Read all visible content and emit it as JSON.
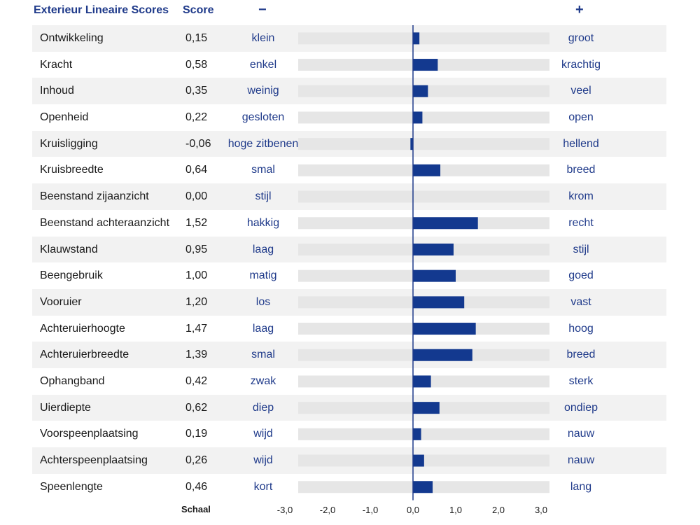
{
  "header": {
    "title": "Exterieur Lineaire Scores",
    "score": "Score",
    "minus": "−",
    "plus": "+"
  },
  "colors": {
    "bar": "#13398f",
    "track": "#e6e6e6",
    "row_alt": "#f2f2f2",
    "axis": "#1f3a8a",
    "label_blue": "#1f3a8a"
  },
  "chart_data": {
    "type": "bar",
    "orientation": "horizontal",
    "title": "Exterieur Lineaire Scores",
    "xlim": [
      -3.0,
      3.0
    ],
    "xaxis_label": "Schaal",
    "xticks": [
      "-3,0",
      "-2,0",
      "-1,0",
      "0,0",
      "1,0",
      "2,0",
      "3,0"
    ],
    "xtick_values": [
      -3,
      -2,
      -1,
      0,
      1,
      2,
      3
    ],
    "rows": [
      {
        "label": "Ontwikkeling",
        "score": "0,15",
        "value": 0.15,
        "minus": "klein",
        "plus": "groot"
      },
      {
        "label": "Kracht",
        "score": "0,58",
        "value": 0.58,
        "minus": "enkel",
        "plus": "krachtig"
      },
      {
        "label": "Inhoud",
        "score": "0,35",
        "value": 0.35,
        "minus": "weinig",
        "plus": "veel"
      },
      {
        "label": "Openheid",
        "score": "0,22",
        "value": 0.22,
        "minus": "gesloten",
        "plus": "open"
      },
      {
        "label": "Kruisligging",
        "score": "-0,06",
        "value": -0.06,
        "minus": "hoge zitbenen",
        "plus": "hellend"
      },
      {
        "label": "Kruisbreedte",
        "score": "0,64",
        "value": 0.64,
        "minus": "smal",
        "plus": "breed"
      },
      {
        "label": "Beenstand zijaanzicht",
        "score": "0,00",
        "value": 0.0,
        "minus": "stijl",
        "plus": "krom"
      },
      {
        "label": "Beenstand achteraanzicht",
        "score": "1,52",
        "value": 1.52,
        "minus": "hakkig",
        "plus": "recht"
      },
      {
        "label": "Klauwstand",
        "score": "0,95",
        "value": 0.95,
        "minus": "laag",
        "plus": "stijl"
      },
      {
        "label": "Beengebruik",
        "score": "1,00",
        "value": 1.0,
        "minus": "matig",
        "plus": "goed"
      },
      {
        "label": "Vooruier",
        "score": "1,20",
        "value": 1.2,
        "minus": "los",
        "plus": "vast"
      },
      {
        "label": "Achteruierhoogte",
        "score": "1,47",
        "value": 1.47,
        "minus": "laag",
        "plus": "hoog"
      },
      {
        "label": "Achteruierbreedte",
        "score": "1,39",
        "value": 1.39,
        "minus": "smal",
        "plus": "breed"
      },
      {
        "label": "Ophangband",
        "score": "0,42",
        "value": 0.42,
        "minus": "zwak",
        "plus": "sterk"
      },
      {
        "label": "Uierdiepte",
        "score": "0,62",
        "value": 0.62,
        "minus": "diep",
        "plus": "ondiep"
      },
      {
        "label": "Voorspeenplaatsing",
        "score": "0,19",
        "value": 0.19,
        "minus": "wijd",
        "plus": "nauw"
      },
      {
        "label": "Achterspeenplaatsing",
        "score": "0,26",
        "value": 0.26,
        "minus": "wijd",
        "plus": "nauw"
      },
      {
        "label": "Speenlengte",
        "score": "0,46",
        "value": 0.46,
        "minus": "kort",
        "plus": "lang"
      }
    ]
  }
}
